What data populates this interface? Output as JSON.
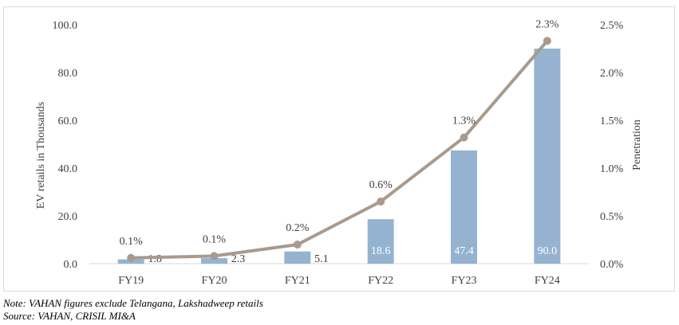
{
  "chart_data": {
    "type": "bar+line",
    "categories": [
      "FY19",
      "FY20",
      "FY21",
      "FY22",
      "FY23",
      "FY24"
    ],
    "bar_series": {
      "values": [
        1.8,
        2.3,
        5.1,
        18.6,
        47.4,
        90.0
      ],
      "labels": [
        "1.8",
        "2.3",
        "5.1",
        "18.6",
        "47.4",
        "90.0"
      ],
      "color": "#95b3d1"
    },
    "line_series": {
      "values": [
        0.0006,
        0.0008,
        0.002,
        0.0065,
        0.0132,
        0.0233
      ],
      "labels": [
        "0.1%",
        "0.1%",
        "0.2%",
        "0.6%",
        "1.3%",
        "2.3%"
      ],
      "color": "#a89a8d"
    },
    "ylabel_left": "EV retails in Thousands",
    "ylabel_right": "Penetration",
    "ylim_left": [
      0,
      100
    ],
    "ylim_right": [
      0,
      0.025
    ],
    "yticks_left": [
      "0.0",
      "20.0",
      "40.0",
      "60.0",
      "80.0",
      "100.0"
    ],
    "yticks_right": [
      "0.0%",
      "0.5%",
      "1.0%",
      "1.5%",
      "2.0%",
      "2.5%"
    ],
    "grid": false
  },
  "notes": {
    "note": "Note: VAHAN figures exclude Telangana, Lakshadweep retails",
    "source": "Source: VAHAN, CRISIL MI&A"
  }
}
